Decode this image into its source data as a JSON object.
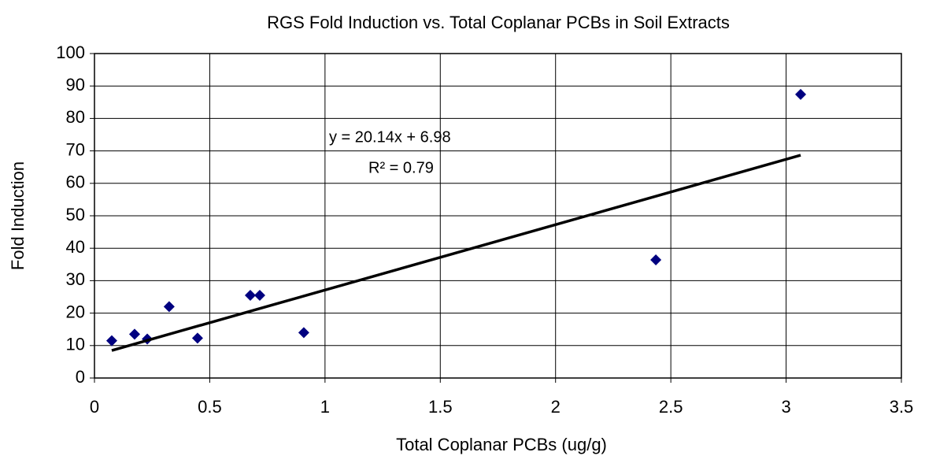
{
  "chart_data": {
    "type": "scatter",
    "title": "RGS Fold Induction vs. Total Coplanar PCBs in Soil Extracts",
    "x_label": "Total Coplanar PCBs (ug/g)",
    "y_label": "Fold Induction",
    "series": [
      {
        "name": "Fold Induction",
        "color": "#000080",
        "x": [
          0.075,
          0.174,
          0.229,
          0.324,
          0.447,
          0.676,
          0.717,
          0.908,
          2.435,
          3.063
        ],
        "values": [
          11.5,
          13.5,
          12,
          22,
          12.3,
          25.5,
          25.5,
          14,
          36.4,
          87.4
        ]
      }
    ],
    "trendline": {
      "slope": 20.14,
      "intercept": 6.98,
      "color": "#000000",
      "equation": "y = 20.14x + 6.98",
      "r_squared_label": "R² = 0.79"
    },
    "xlim": [
      0,
      3.5
    ],
    "xticks": [
      0,
      0.5,
      1,
      1.5,
      2,
      2.5,
      3,
      3.5
    ],
    "ylim": [
      0,
      100
    ],
    "yticks": [
      0,
      10,
      20,
      30,
      40,
      50,
      60,
      70,
      80,
      90,
      100
    ],
    "grid": true
  }
}
